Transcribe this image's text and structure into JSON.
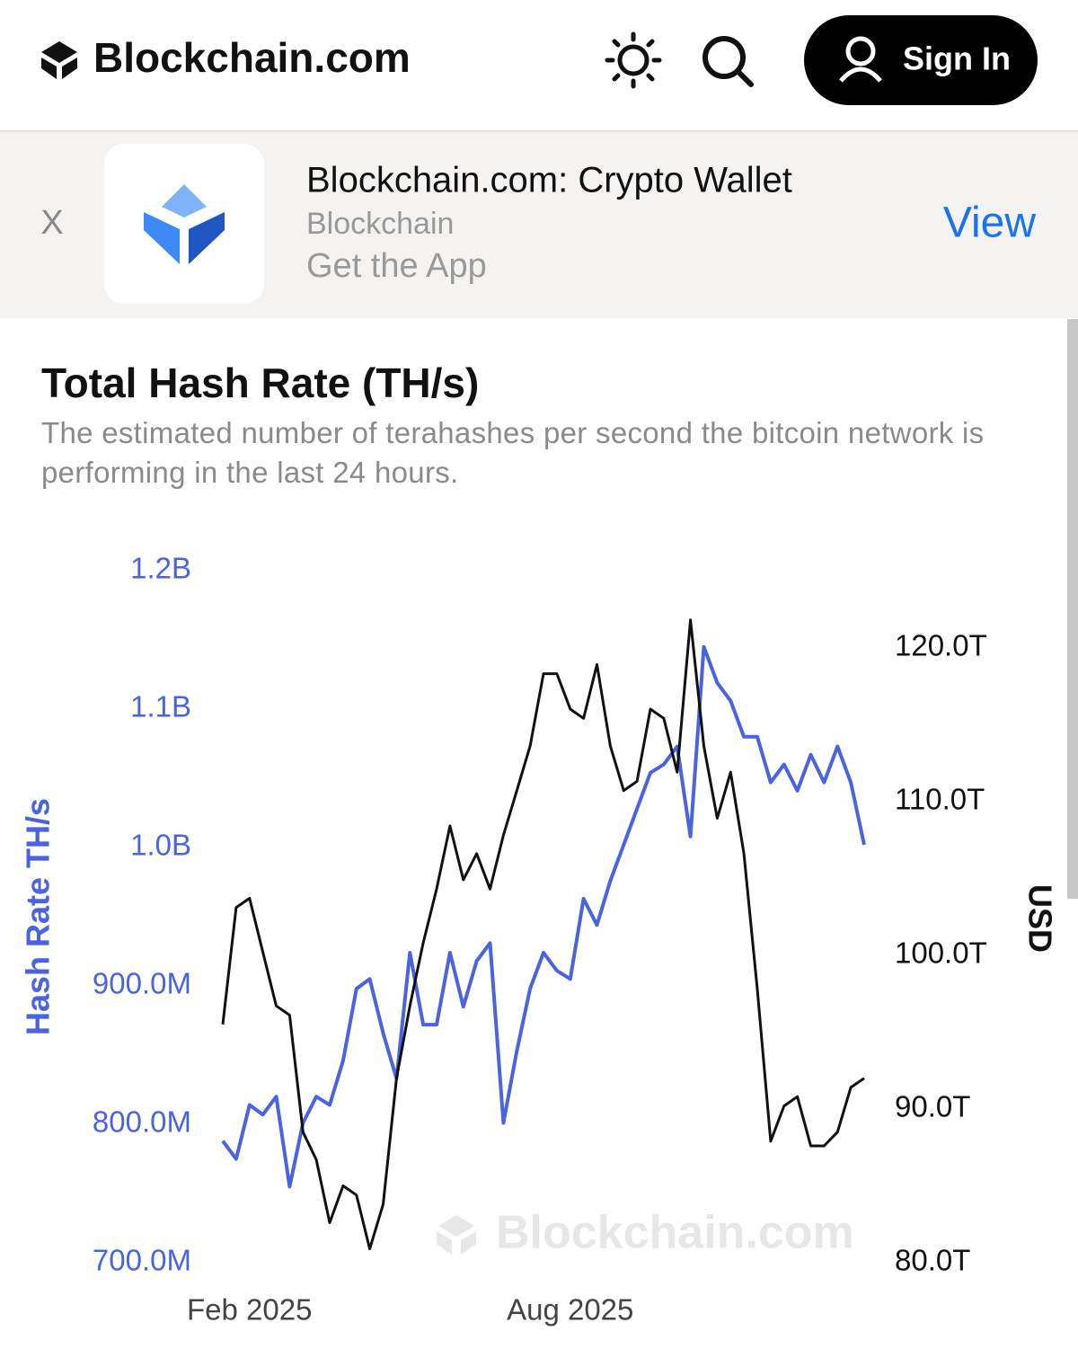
{
  "header": {
    "logo": "Blockchain.com",
    "sign_in": "Sign In"
  },
  "banner": {
    "close": "X",
    "app_name": "Blockchain.com: Crypto Wallet",
    "publisher": "Blockchain",
    "tagline": "Get the App",
    "action": "View"
  },
  "chart_data": {
    "type": "line",
    "title": "Total Hash Rate (TH/s)",
    "subtitle": "The estimated number of terahashes per second the bitcoin network is performing in the last 24 hours.",
    "watermark": "Blockchain.com",
    "ylabel": "Hash Rate TH/s",
    "y2label": "USD",
    "categories": [
      null,
      null,
      "Feb 2025",
      null,
      null,
      null,
      null,
      null,
      null,
      null,
      null,
      null,
      null,
      null,
      null,
      null,
      null,
      null,
      null,
      null,
      null,
      null,
      null,
      null,
      null,
      null,
      "Aug 2025",
      null,
      null,
      null,
      null,
      null,
      null,
      null,
      null,
      null,
      null,
      null,
      null,
      null,
      null,
      null,
      null,
      null,
      null,
      null,
      null,
      null,
      null
    ],
    "series": [
      {
        "color": "#4a63e0",
        "values": [
          788000000.0,
          775000000.0,
          814000000.0,
          807000000.0,
          820000000.0,
          755000000.0,
          801000000.0,
          820000000.0,
          814000000.0,
          846000000.0,
          898000000.0,
          905000000.0,
          866000000.0,
          833000000.0,
          924000000.0,
          872000000.0,
          872000000.0,
          924000000.0,
          885000000.0,
          918000000.0,
          931000000.0,
          801000000.0,
          853000000.0,
          898000000.0,
          924000000.0,
          911000000.0,
          905000000.0,
          963000000.0,
          944000000.0,
          976000000.0,
          1002000000.0,
          1028000000.0,
          1054000000.0,
          1060000000.0,
          1073000000.0,
          1008000000.0,
          1145000000.0,
          1119000000.0,
          1106000000.0,
          1080000000.0,
          1080000000.0,
          1047000000.0,
          1060000000.0,
          1041000000.0,
          1067000000.0,
          1047000000.0,
          1073000000.0,
          1047000000.0,
          1002000000.0
        ]
      },
      {
        "color": "#111111",
        "axis": "y2",
        "values": [
          95500000000000.0,
          103100000000000.0,
          103700000000000.0,
          100200000000000.0,
          96700000000000.0,
          96100000000000.0,
          88500000000000.0,
          86700000000000.0,
          82600000000000.0,
          85000000000000.0,
          84400000000000.0,
          80900000000000.0,
          83800000000000.0,
          92000000000000.0,
          96700000000000.0,
          100800000000000.0,
          104300000000000.0,
          108400000000000.0,
          104900000000000.0,
          106600000000000.0,
          104300000000000.0,
          107800000000000.0,
          110700000000000.0,
          113600000000000.0,
          118300000000000.0,
          118300000000000.0,
          116000000000000.0,
          115400000000000.0,
          118900000000000.0,
          113600000000000.0,
          110700000000000.0,
          111300000000000.0,
          116000000000000.0,
          115400000000000.0,
          111900000000000.0,
          121800000000000.0,
          113600000000000.0,
          108900000000000.0,
          111900000000000.0,
          106600000000000.0,
          97800000000000.0,
          87900000000000.0,
          90200000000000.0,
          90800000000000.0,
          87600000000000.0,
          87600000000000.0,
          88500000000000.0,
          91400000000000.0,
          92000000000000.0
        ]
      }
    ],
    "ylim": [
      700000000.0,
      1200000000.0
    ],
    "yticks": [
      {
        "value": 700000000.0,
        "label": "700.0M"
      },
      {
        "value": 800000000.0,
        "label": "800.0M"
      },
      {
        "value": 900000000.0,
        "label": "900.0M"
      },
      {
        "value": 1000000000.0,
        "label": "1.0B"
      },
      {
        "value": 1100000000.0,
        "label": "1.1B"
      },
      {
        "value": 1200000000.0,
        "label": "1.2B"
      }
    ],
    "y2lim": [
      80000000000000.0,
      125000000000000.0
    ],
    "y2ticks": [
      {
        "value": 80000000000000.0,
        "label": "80.0T"
      },
      {
        "value": 90000000000000.0,
        "label": "90.0T"
      },
      {
        "value": 100000000000000.0,
        "label": "100.0T"
      },
      {
        "value": 110000000000000.0,
        "label": "110.0T"
      },
      {
        "value": 120000000000000.0,
        "label": "120.0T"
      }
    ],
    "grid": false
  }
}
